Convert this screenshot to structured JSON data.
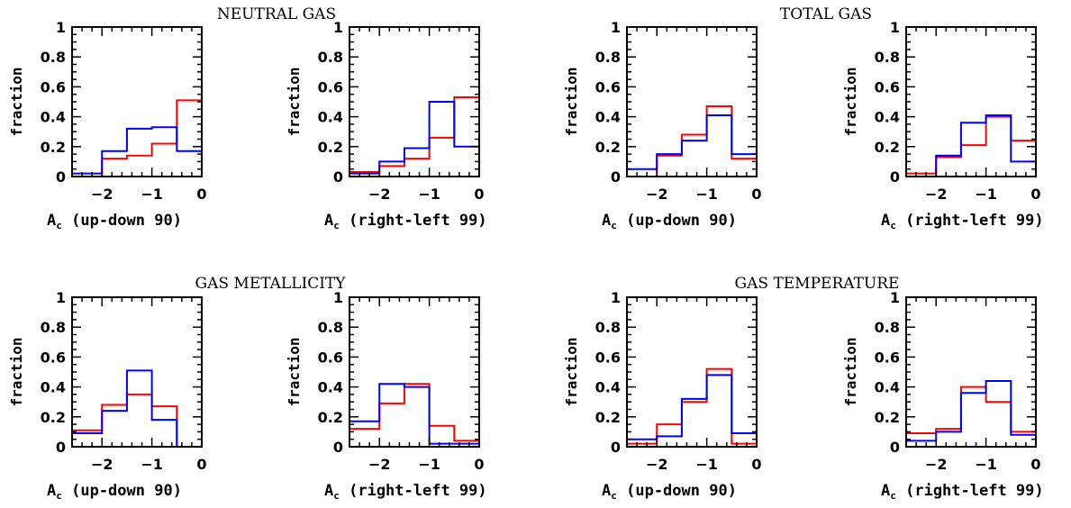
{
  "figure": {
    "titles": [
      "NEUTRAL GAS",
      "TOTAL GAS",
      "GAS METALLICITY",
      "GAS TEMPERATURE"
    ],
    "colors": {
      "red": "#ff0000",
      "blue": "#0000ff",
      "axes": "#000000"
    }
  },
  "chart_data": [
    {
      "type": "step-histogram",
      "group_title": "NEUTRAL GAS",
      "xlabel_main": "A",
      "xlabel_sub": "c",
      "xlabel_rest": " (up-down 90)",
      "ylabel": "fraction",
      "xlim": [
        -2.6,
        0
      ],
      "ylim": [
        0,
        1
      ],
      "xticks": [
        -2,
        -1,
        0
      ],
      "xtick_labels": [
        "−2",
        "−1",
        "0"
      ],
      "yticks": [
        0,
        0.2,
        0.4,
        0.6,
        0.8,
        1
      ],
      "ytick_labels": [
        "0",
        "0.2",
        "0.4",
        "0.6",
        "0.8",
        "1"
      ],
      "bin_edges": [
        -2.6,
        -2.0,
        -1.5,
        -1.0,
        -0.5,
        0
      ],
      "series": [
        {
          "color": "red",
          "values": [
            0.0,
            0.12,
            0.14,
            0.22,
            0.51
          ]
        },
        {
          "color": "blue",
          "values": [
            0.02,
            0.17,
            0.32,
            0.33,
            0.17
          ]
        }
      ]
    },
    {
      "type": "step-histogram",
      "group_title": "NEUTRAL GAS",
      "xlabel_main": "A",
      "xlabel_sub": "c",
      "xlabel_rest": " (right-left 99)",
      "ylabel": "fraction",
      "xlim": [
        -2.6,
        0
      ],
      "ylim": [
        0,
        1
      ],
      "xticks": [
        -2,
        -1,
        0
      ],
      "xtick_labels": [
        "−2",
        "−1",
        "0"
      ],
      "yticks": [
        0,
        0.2,
        0.4,
        0.6,
        0.8,
        1
      ],
      "ytick_labels": [
        "0",
        "0.2",
        "0.4",
        "0.6",
        "0.8",
        "1"
      ],
      "bin_edges": [
        -2.6,
        -2.0,
        -1.5,
        -1.0,
        -0.5,
        0
      ],
      "series": [
        {
          "color": "red",
          "values": [
            0.03,
            0.07,
            0.12,
            0.26,
            0.53
          ]
        },
        {
          "color": "blue",
          "values": [
            0.02,
            0.1,
            0.19,
            0.5,
            0.2
          ]
        }
      ]
    },
    {
      "type": "step-histogram",
      "group_title": "TOTAL GAS",
      "xlabel_main": "A",
      "xlabel_sub": "c",
      "xlabel_rest": " (up-down 90)",
      "ylabel": "fraction",
      "xlim": [
        -2.6,
        0
      ],
      "ylim": [
        0,
        1
      ],
      "xticks": [
        -2,
        -1,
        0
      ],
      "xtick_labels": [
        "−2",
        "−1",
        "0"
      ],
      "yticks": [
        0,
        0.2,
        0.4,
        0.6,
        0.8,
        1
      ],
      "ytick_labels": [
        "0",
        "0.2",
        "0.4",
        "0.6",
        "0.8",
        "1"
      ],
      "bin_edges": [
        -2.6,
        -2.0,
        -1.5,
        -1.0,
        -0.5,
        0
      ],
      "series": [
        {
          "color": "red",
          "values": [
            0.0,
            0.14,
            0.28,
            0.47,
            0.12
          ]
        },
        {
          "color": "blue",
          "values": [
            0.05,
            0.15,
            0.24,
            0.41,
            0.15
          ]
        }
      ]
    },
    {
      "type": "step-histogram",
      "group_title": "TOTAL GAS",
      "xlabel_main": "A",
      "xlabel_sub": "c",
      "xlabel_rest": " (right-left 99)",
      "ylabel": "fraction",
      "xlim": [
        -2.6,
        0
      ],
      "ylim": [
        0,
        1
      ],
      "xticks": [
        -2,
        -1,
        0
      ],
      "xtick_labels": [
        "−2",
        "−1",
        "0"
      ],
      "yticks": [
        0,
        0.2,
        0.4,
        0.6,
        0.8,
        1
      ],
      "ytick_labels": [
        "0",
        "0.2",
        "0.4",
        "0.6",
        "0.8",
        "1"
      ],
      "bin_edges": [
        -2.6,
        -2.0,
        -1.5,
        -1.0,
        -0.5,
        0
      ],
      "series": [
        {
          "color": "red",
          "values": [
            0.02,
            0.13,
            0.21,
            0.4,
            0.24
          ]
        },
        {
          "color": "blue",
          "values": [
            0.0,
            0.14,
            0.36,
            0.41,
            0.1
          ]
        }
      ]
    },
    {
      "type": "step-histogram",
      "group_title": "GAS METALLICITY",
      "xlabel_main": "A",
      "xlabel_sub": "c",
      "xlabel_rest": " (up-down 90)",
      "ylabel": "fraction",
      "xlim": [
        -2.6,
        0
      ],
      "ylim": [
        0,
        1
      ],
      "xticks": [
        -2,
        -1,
        0
      ],
      "xtick_labels": [
        "−2",
        "−1",
        "0"
      ],
      "yticks": [
        0,
        0.2,
        0.4,
        0.6,
        0.8,
        1
      ],
      "ytick_labels": [
        "0",
        "0.2",
        "0.4",
        "0.6",
        "0.8",
        "1"
      ],
      "bin_edges": [
        -2.6,
        -2.0,
        -1.5,
        -1.0,
        -0.5,
        0
      ],
      "series": [
        {
          "color": "red",
          "values": [
            0.11,
            0.28,
            0.35,
            0.27,
            0.0
          ]
        },
        {
          "color": "blue",
          "values": [
            0.09,
            0.24,
            0.51,
            0.18,
            0.0
          ]
        }
      ]
    },
    {
      "type": "step-histogram",
      "group_title": "GAS METALLICITY",
      "xlabel_main": "A",
      "xlabel_sub": "c",
      "xlabel_rest": " (right-left 99)",
      "ylabel": "fraction",
      "xlim": [
        -2.6,
        0
      ],
      "ylim": [
        0,
        1
      ],
      "xticks": [
        -2,
        -1,
        0
      ],
      "xtick_labels": [
        "−2",
        "−1",
        "0"
      ],
      "yticks": [
        0,
        0.2,
        0.4,
        0.6,
        0.8,
        1
      ],
      "ytick_labels": [
        "0",
        "0.2",
        "0.4",
        "0.6",
        "0.8",
        "1"
      ],
      "bin_edges": [
        -2.6,
        -2.0,
        -1.5,
        -1.0,
        -0.5,
        0
      ],
      "series": [
        {
          "color": "red",
          "values": [
            0.12,
            0.29,
            0.42,
            0.14,
            0.04
          ]
        },
        {
          "color": "blue",
          "values": [
            0.17,
            0.42,
            0.4,
            0.02,
            0.02
          ]
        }
      ]
    },
    {
      "type": "step-histogram",
      "group_title": "GAS TEMPERATURE",
      "xlabel_main": "A",
      "xlabel_sub": "c",
      "xlabel_rest": " (up-down 90)",
      "ylabel": "fraction",
      "xlim": [
        -2.6,
        0
      ],
      "ylim": [
        0,
        1
      ],
      "xticks": [
        -2,
        -1,
        0
      ],
      "xtick_labels": [
        "−2",
        "−1",
        "0"
      ],
      "yticks": [
        0,
        0.2,
        0.4,
        0.6,
        0.8,
        1
      ],
      "ytick_labels": [
        "0",
        "0.2",
        "0.4",
        "0.6",
        "0.8",
        "1"
      ],
      "bin_edges": [
        -2.6,
        -2.0,
        -1.5,
        -1.0,
        -0.5,
        0
      ],
      "series": [
        {
          "color": "red",
          "values": [
            0.02,
            0.15,
            0.3,
            0.52,
            0.02
          ]
        },
        {
          "color": "blue",
          "values": [
            0.05,
            0.07,
            0.32,
            0.48,
            0.09
          ]
        }
      ]
    },
    {
      "type": "step-histogram",
      "group_title": "GAS TEMPERATURE",
      "xlabel_main": "A",
      "xlabel_sub": "c",
      "xlabel_rest": " (right-left 99)",
      "ylabel": "fraction",
      "xlim": [
        -2.6,
        0
      ],
      "ylim": [
        0,
        1
      ],
      "xticks": [
        -2,
        -1,
        0
      ],
      "xtick_labels": [
        "−2",
        "−1",
        "0"
      ],
      "yticks": [
        0,
        0.2,
        0.4,
        0.6,
        0.8,
        1
      ],
      "ytick_labels": [
        "0",
        "0.2",
        "0.4",
        "0.6",
        "0.8",
        "1"
      ],
      "bin_edges": [
        -2.6,
        -2.0,
        -1.5,
        -1.0,
        -0.5,
        0
      ],
      "series": [
        {
          "color": "red",
          "values": [
            0.09,
            0.12,
            0.4,
            0.3,
            0.1
          ]
        },
        {
          "color": "blue",
          "values": [
            0.04,
            0.1,
            0.36,
            0.44,
            0.08
          ]
        }
      ]
    }
  ]
}
